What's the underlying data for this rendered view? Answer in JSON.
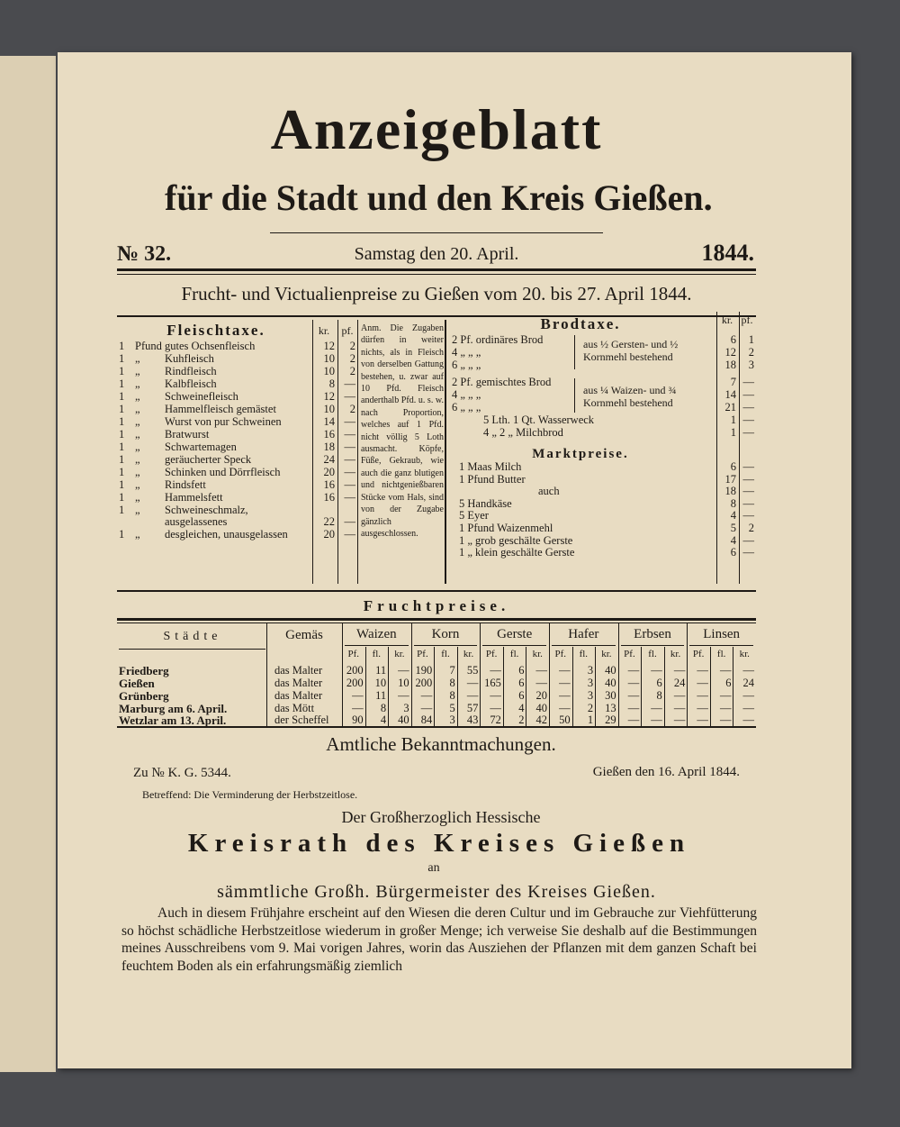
{
  "header": {
    "title": "Anzeigeblatt",
    "subtitle": "für die Stadt und den Kreis Gießen.",
    "number": "№ 32.",
    "date": "Samstag den 20. April.",
    "year": "1844."
  },
  "prices_heading": "Frucht- und Victualienpreise zu Gießen vom 20. bis 27. April 1844.",
  "fleischtaxe": {
    "title": "Fleischtaxe.",
    "col_kr": "kr.",
    "col_pf": "pf.",
    "rows": [
      [
        "1",
        "Pfund",
        "gutes Ochsenfleisch",
        "12",
        "2"
      ],
      [
        "1",
        "„",
        "Kuhfleisch",
        "10",
        "2"
      ],
      [
        "1",
        "„",
        "Rindfleisch",
        "10",
        "2"
      ],
      [
        "1",
        "„",
        "Kalbfleisch",
        "8",
        "—"
      ],
      [
        "1",
        "„",
        "Schweinefleisch",
        "12",
        "—"
      ],
      [
        "1",
        "„",
        "Hammelfleisch gemästet",
        "10",
        "2"
      ],
      [
        "1",
        "„",
        "Wurst von pur Schweinen",
        "14",
        "—"
      ],
      [
        "1",
        "„",
        "Bratwurst",
        "16",
        "—"
      ],
      [
        "1",
        "„",
        "Schwartemagen",
        "18",
        "—"
      ],
      [
        "1",
        "„",
        "geräucherter Speck",
        "24",
        "—"
      ],
      [
        "1",
        "„",
        "Schinken und Dörrfleisch",
        "20",
        "—"
      ],
      [
        "1",
        "„",
        "Rindsfett",
        "16",
        "—"
      ],
      [
        "1",
        "„",
        "Hammelsfett",
        "16",
        "—"
      ],
      [
        "1",
        "„",
        "Schweineschmalz, ausgelassenes",
        "22",
        "—"
      ],
      [
        "1",
        "„",
        "desgleichen, unausgelassen",
        "20",
        "—"
      ]
    ],
    "note": "Anm. Die Zugaben dürfen in weiter nichts, als in Fleisch von derselben Gattung bestehen, u. zwar auf 10 Pfd. Fleisch anderthalb Pfd. u. s. w. nach Proportion, welches auf 1 Pfd. nicht völlig 5 Loth ausmacht. Köpfe, Füße, Gekraub, wie auch die ganz blutigen und nichtgenießbaren Stücke vom Hals, sind von der Zugabe gänzlich ausgeschlossen."
  },
  "brodtaxe": {
    "title": "Brodtaxe.",
    "col_kr": "kr.",
    "col_pf": "pf.",
    "rows": [
      [
        "2 Pf. ordinäres Brod",
        "6",
        "1"
      ],
      [
        "4 „ „ „",
        "12",
        "2"
      ],
      [
        "6 „ „ „",
        "18",
        "3"
      ],
      [
        "2 Pf. gemischtes Brod",
        "7",
        "—"
      ],
      [
        "4 „ „ „",
        "14",
        "—"
      ],
      [
        "6 „ „ „",
        "21",
        "—"
      ],
      [
        "5 Lth. 1 Qt. Wasserweck",
        "1",
        "—"
      ],
      [
        "4 „ 2 „ Milchbrod",
        "1",
        "—"
      ]
    ],
    "brace_notes": [
      "aus ½ Gersten- und ½ Kornmehl bestehend",
      "aus ¼ Waizen- und ¾ Kornmehl bestehend"
    ]
  },
  "marktpreise": {
    "title": "Marktpreise.",
    "rows": [
      [
        "1 Maas Milch",
        "6",
        "—"
      ],
      [
        "1 Pfund Butter",
        "17",
        "—"
      ],
      [
        "auch",
        "18",
        "—"
      ],
      [
        "5 Handkäse",
        "8",
        "—"
      ],
      [
        "5 Eyer",
        "4",
        "—"
      ],
      [
        "1 Pfund Waizenmehl",
        "5",
        "2"
      ],
      [
        "1 „ grob geschälte Gerste",
        "4",
        "—"
      ],
      [
        "1 „ klein geschälte Gerste",
        "6",
        "—"
      ]
    ]
  },
  "fruchtpreise": {
    "title": "Fruchtpreise.",
    "col_city": "Städte",
    "col_measure": "Gemäs",
    "grains": [
      "Waizen",
      "Korn",
      "Gerste",
      "Hafer",
      "Erbsen",
      "Linsen"
    ],
    "subcols": [
      "Pf.",
      "fl.",
      "kr."
    ],
    "rows": [
      {
        "city": "Friedberg",
        "measure": "das Malter",
        "values": [
          "200",
          "11",
          "—",
          "190",
          "7",
          "55",
          "—",
          "6",
          "—",
          "—",
          "3",
          "40",
          "—",
          "—",
          "—",
          "—",
          "—",
          "—"
        ]
      },
      {
        "city": "Gießen",
        "measure": "das Malter",
        "values": [
          "200",
          "10",
          "10",
          "200",
          "8",
          "—",
          "165",
          "6",
          "—",
          "—",
          "3",
          "40",
          "—",
          "6",
          "24",
          "—",
          "6",
          "24"
        ]
      },
      {
        "city": "Grünberg",
        "measure": "das Malter",
        "values": [
          "—",
          "11",
          "—",
          "—",
          "8",
          "—",
          "—",
          "6",
          "20",
          "—",
          "3",
          "30",
          "—",
          "8",
          "—",
          "—",
          "—",
          "—"
        ]
      },
      {
        "city": "Marburg am 6. April.",
        "measure": "das Mött",
        "values": [
          "—",
          "8",
          "3",
          "—",
          "5",
          "57",
          "—",
          "4",
          "40",
          "—",
          "2",
          "13",
          "—",
          "—",
          "—",
          "—",
          "—",
          "—"
        ]
      },
      {
        "city": "Wetzlar am 13. April.",
        "measure": "der Scheffel",
        "values": [
          "90",
          "4",
          "40",
          "84",
          "3",
          "43",
          "72",
          "2",
          "42",
          "50",
          "1",
          "29",
          "—",
          "—",
          "—",
          "—",
          "—",
          "—"
        ]
      }
    ]
  },
  "announcement": {
    "heading": "Amtliche Bekanntmachungen.",
    "reference": "Zu № K. G. 5344.",
    "place_date": "Gießen den 16. April 1844.",
    "subject": "Betreffend: Die Verminderung der Herbstzeitlose.",
    "sender_line1": "Der Großherzoglich Hessische",
    "sender_line2": "Kreisrath des Kreises Gießen",
    "to": "an",
    "recipients": "sämmtliche Großh. Bürgermeister des Kreises Gießen.",
    "body": "Auch in diesem Frühjahre erscheint auf den Wiesen die deren Cultur und im Gebrauche zur Viehfütterung so höchst schädliche Herbstzeitlose wiederum in großer Menge; ich verweise Sie deshalb auf die Bestimmungen meines Ausschreibens vom 9. Mai vorigen Jahres, worin das Ausziehen der Pflanzen mit dem ganzen Schaft bei feuchtem Boden als ein erfahrungsmäßig ziemlich"
  }
}
